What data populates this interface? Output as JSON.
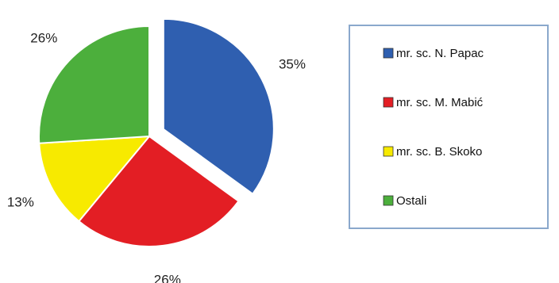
{
  "chart_data": {
    "type": "pie",
    "title": "",
    "slices": [
      {
        "label": "mr. sc. N. Papac",
        "value": 35,
        "value_label": "35%",
        "color": "#2f5fb0",
        "exploded": true
      },
      {
        "label": "mr. sc. M. Mabić",
        "value": 26,
        "value_label": "26%",
        "color": "#e31e24",
        "exploded": false
      },
      {
        "label": "mr. sc. B. Skoko",
        "value": 13,
        "value_label": "13%",
        "color": "#f7ea00",
        "exploded": false
      },
      {
        "label": "Ostali",
        "value": 26,
        "value_label": "26%",
        "color": "#4caf3c",
        "exploded": false
      }
    ],
    "start_angle_deg": 0,
    "direction": "clockwise",
    "legend_position": "right"
  }
}
